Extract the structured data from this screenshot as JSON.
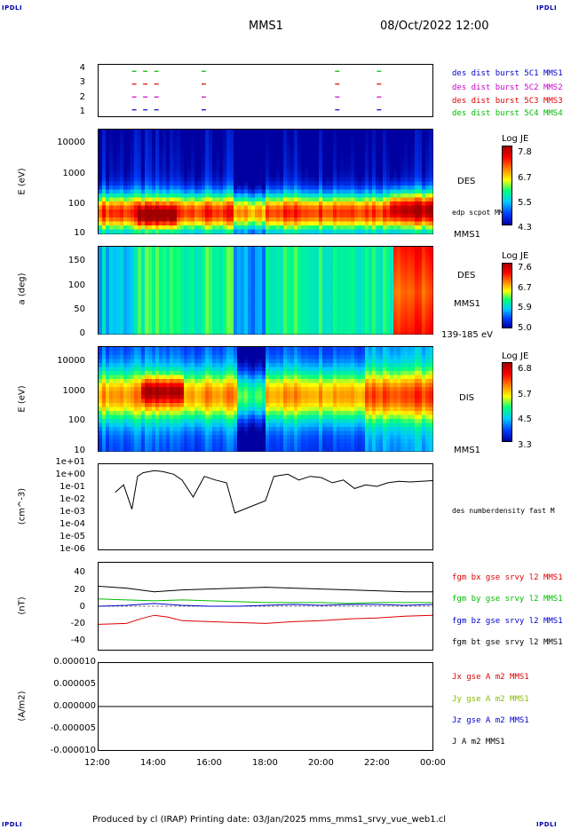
{
  "corner_labels": {
    "top_left": "IPDLI",
    "top_right": "IPDLI",
    "bottom_left": "IPDLI",
    "bottom_right": "IPDLI"
  },
  "header": {
    "mission": "MMS1",
    "datetime": "08/Oct/2022 12:00"
  },
  "footer": "Produced by cl (IRAP)   Printing date: 03/Jan/2025   mms_mms1_srvy_vue_web1.cl",
  "chart_data": [
    {
      "type": "scatter",
      "panel": "burst-availability",
      "yticks": [
        "4",
        "3",
        "2",
        "1"
      ],
      "ylim": [
        0.5,
        4.5
      ],
      "series": [
        {
          "name": "des dist burst 5C1 MMS1",
          "color": "#0000cc",
          "y": 1
        },
        {
          "name": "des dist burst 5C2 MMS2",
          "color": "#cc00cc",
          "y": 2
        },
        {
          "name": "des dist burst 5C3 MMS3",
          "color": "#dd0000",
          "y": 3
        },
        {
          "name": "des dist burst 5C4 MMS4",
          "color": "#00bb00",
          "y": 4
        }
      ],
      "burst_times_h": [
        13.2,
        13.6,
        14.0,
        15.7,
        20.5,
        22.0
      ]
    },
    {
      "type": "heatmap",
      "panel": "des-energy",
      "ylabel": "E (eV)",
      "yticks": [
        "10000",
        "1000",
        "100",
        "10"
      ],
      "yscale": "log",
      "ylim": [
        10,
        30000
      ],
      "right_label": "DES",
      "overlay_label": "edp scpot MMS1",
      "bottom_label": "MMS1",
      "colorbar": {
        "title": "Log JE",
        "ticks": [
          "7.8",
          "6.7",
          "5.5",
          "4.3"
        ]
      }
    },
    {
      "type": "heatmap",
      "panel": "des-pitch",
      "ylabel": "a (deg)",
      "yticks": [
        "150",
        "100",
        "50",
        "0"
      ],
      "ylim": [
        0,
        180
      ],
      "right_label": "DES",
      "bottom_label": "MMS1",
      "energy_range": "139-185 eV",
      "colorbar": {
        "title": "Log JE",
        "ticks": [
          "7.6",
          "6.7",
          "5.9",
          "5.0"
        ]
      }
    },
    {
      "type": "heatmap",
      "panel": "dis-energy",
      "ylabel": "E (eV)",
      "yticks": [
        "10000",
        "1000",
        "100",
        "10"
      ],
      "yscale": "log",
      "ylim": [
        10,
        30000
      ],
      "right_label": "DIS",
      "bottom_label": "MMS1",
      "colorbar": {
        "title": "Log JE",
        "ticks": [
          "6.8",
          "5.7",
          "4.5",
          "3.3"
        ]
      }
    },
    {
      "type": "line",
      "panel": "density",
      "ylabel": "(cm^-3)",
      "yticks": [
        "1e+01",
        "1e+00",
        "1e-01",
        "1e-02",
        "1e-03",
        "1e-04",
        "1e-05",
        "1e-06"
      ],
      "yscale": "log",
      "ylim": [
        1e-06,
        10
      ],
      "series": [
        {
          "name": "des numberdensity fast M",
          "color": "#000000",
          "x": [
            12.6,
            12.9,
            13.2,
            13.4,
            13.6,
            14.0,
            14.3,
            14.7,
            15.0,
            15.4,
            15.8,
            16.2,
            16.6,
            16.9,
            18.0,
            18.3,
            18.8,
            19.2,
            19.6,
            20.0,
            20.4,
            20.8,
            21.2,
            21.6,
            22.0,
            22.4,
            22.8,
            23.2,
            23.6,
            24.0
          ],
          "y": [
            0.05,
            0.2,
            0.002,
            1.0,
            2.0,
            3.0,
            2.5,
            1.5,
            0.5,
            0.02,
            1.0,
            0.5,
            0.3,
            0.001,
            0.01,
            1.0,
            1.5,
            0.5,
            1.0,
            0.8,
            0.3,
            0.5,
            0.1,
            0.2,
            0.15,
            0.3,
            0.4,
            0.35,
            0.4,
            0.45
          ]
        }
      ]
    },
    {
      "type": "line",
      "panel": "magnetic-field",
      "ylabel": "(nT)",
      "yticks": [
        "40",
        "20",
        "0",
        "-20",
        "-40"
      ],
      "ylim": [
        -48,
        48
      ],
      "series": [
        {
          "name": "fgm bx gse srvy l2 MMS1",
          "color": "#dd0000",
          "x": [
            12.0,
            13.0,
            13.5,
            14.0,
            14.5,
            15.0,
            16.0,
            17.0,
            18.0,
            19.0,
            20.0,
            21.0,
            22.0,
            23.0,
            24.0
          ],
          "y": [
            -20,
            -19,
            -14,
            -10,
            -12,
            -16,
            -17,
            -18,
            -19,
            -17,
            -16,
            -14,
            -13,
            -11,
            -10
          ]
        },
        {
          "name": "fgm by gse srvy l2 MMS1",
          "color": "#00bb00",
          "x": [
            12.0,
            13.0,
            14.0,
            15.0,
            16.0,
            17.0,
            18.0,
            19.0,
            20.0,
            21.0,
            22.0,
            23.0,
            24.0
          ],
          "y": [
            8,
            7,
            6,
            7,
            6,
            5,
            4,
            4,
            4,
            3,
            4,
            4,
            4
          ]
        },
        {
          "name": "fgm bz gse srvy l2 MMS1",
          "color": "#0000cc",
          "x": [
            12.0,
            13.0,
            14.0,
            15.0,
            16.0,
            17.0,
            18.0,
            19.0,
            20.0,
            21.0,
            22.0,
            23.0,
            24.0
          ],
          "y": [
            0,
            1,
            3,
            1,
            0,
            0,
            1,
            2,
            1,
            2,
            2,
            1,
            2
          ]
        },
        {
          "name": "fgm bt gse srvy l2 MMS1",
          "color": "#000000",
          "x": [
            12.0,
            13.0,
            14.0,
            15.0,
            16.0,
            17.0,
            18.0,
            19.0,
            20.0,
            21.0,
            22.0,
            23.0,
            24.0
          ],
          "y": [
            22,
            20,
            16,
            18,
            19,
            20,
            21,
            20,
            19,
            18,
            17,
            16,
            16
          ]
        }
      ]
    },
    {
      "type": "line",
      "panel": "current-density",
      "ylabel": "(A/m2)",
      "yticks": [
        "0.000010",
        "0.000005",
        "0.000000",
        "-0.000005",
        "-0.000010"
      ],
      "ylim": [
        -1e-05,
        1e-05
      ],
      "series": [
        {
          "name": "Jx gse A m2 MMS1",
          "color": "#dd0000",
          "x": [
            12.0,
            24.0
          ],
          "y": [
            0,
            0
          ]
        },
        {
          "name": "Jy gse A m2 MMS1",
          "color": "#88bb00",
          "x": [
            12.0,
            24.0
          ],
          "y": [
            0,
            0
          ]
        },
        {
          "name": "Jz gse A m2 MMS1",
          "color": "#0000cc",
          "x": [
            12.0,
            24.0
          ],
          "y": [
            0,
            0
          ]
        },
        {
          "name": "J A m2 MMS1",
          "color": "#000000",
          "x": [
            12.0,
            24.0
          ],
          "y": [
            0,
            0
          ]
        }
      ]
    }
  ],
  "time_axis": {
    "ticks": [
      "12:00",
      "14:00",
      "16:00",
      "18:00",
      "20:00",
      "22:00",
      "00:00"
    ],
    "range_h": [
      12,
      24
    ]
  }
}
